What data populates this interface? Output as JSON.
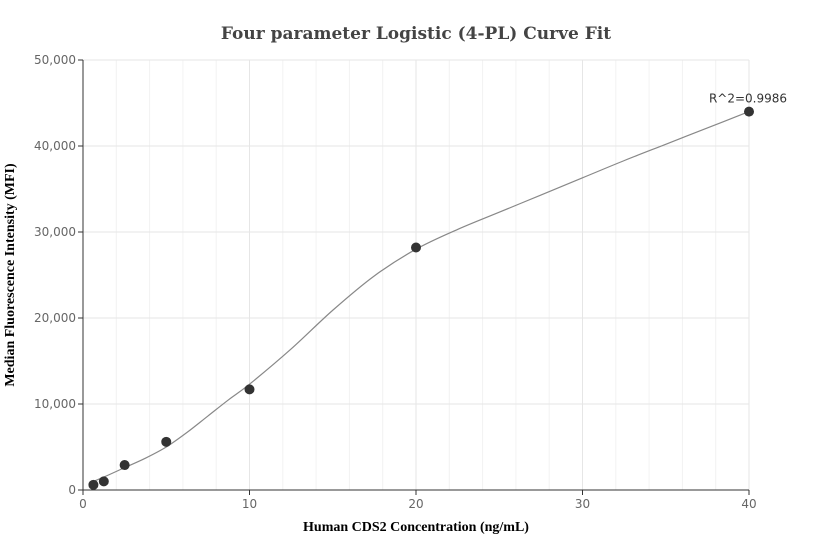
{
  "chart_data": {
    "type": "scatter",
    "title": "Four parameter Logistic (4-PL) Curve Fit",
    "xlabel": "Human CDS2 Concentration (ng/mL)",
    "ylabel": "Median Fluorescence Intensity (MFI)",
    "xlim": [
      0,
      40
    ],
    "ylim": [
      0,
      50000
    ],
    "x_ticks": [
      0,
      10,
      20,
      30,
      40
    ],
    "x_tick_labels": [
      "0",
      "10",
      "20",
      "30",
      "40"
    ],
    "y_ticks": [
      0,
      10000,
      20000,
      30000,
      40000,
      50000
    ],
    "y_tick_labels": [
      "0",
      "10,000",
      "20,000",
      "30,000",
      "40,000",
      "50,000"
    ],
    "grid": true,
    "points": {
      "x": [
        0.625,
        1.25,
        2.5,
        5,
        10,
        20,
        40
      ],
      "y": [
        600,
        1000,
        2900,
        5600,
        11700,
        28200,
        44000
      ]
    },
    "fit_curve": {
      "x": [
        0.625,
        1.25,
        2.5,
        3.75,
        5,
        6.25,
        7.5,
        8.75,
        10,
        12.5,
        15,
        17.5,
        20,
        22.5,
        25,
        27.5,
        30,
        32.5,
        35,
        37.5,
        40
      ],
      "y": [
        1000,
        1500,
        2600,
        3700,
        5000,
        6700,
        8600,
        10500,
        12300,
        16400,
        20900,
        24900,
        28000,
        30300,
        32300,
        34300,
        36300,
        38300,
        40200,
        42100,
        44000
      ]
    },
    "annotation": "R^2=0.9986",
    "colors": {
      "points": "#333333",
      "curve": "#888888",
      "grid": "#e6e6e6",
      "axis": "#333333"
    }
  }
}
